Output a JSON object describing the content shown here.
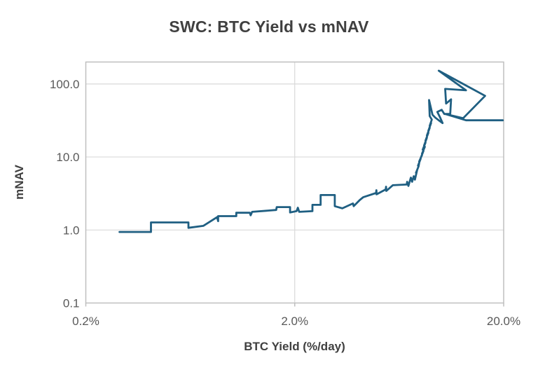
{
  "chart_data": {
    "type": "line",
    "title": "SWC: BTC Yield vs mNAV",
    "xlabel": "BTC Yield (%/day)",
    "ylabel": "mNAV",
    "x_scale": "log",
    "y_scale": "log",
    "xlim_pct_per_day": [
      0.2,
      20
    ],
    "ylim": [
      0.1,
      200
    ],
    "grid": true,
    "legend": "none",
    "x_ticks": [
      {
        "value": 0.2,
        "label": "0.2%"
      },
      {
        "value": 2.0,
        "label": "2.0%"
      },
      {
        "value": 20.0,
        "label": "20.0%"
      }
    ],
    "y_ticks": [
      {
        "value": 100.0,
        "label": "100.0"
      },
      {
        "value": 10.0,
        "label": "10.0"
      },
      {
        "value": 1.0,
        "label": "1.0"
      },
      {
        "value": 0.1,
        "label": "0.1"
      }
    ],
    "colors": {
      "line": "#1f5f82",
      "grid": "#d9d9d9",
      "axis_border": "#bfbfbf",
      "tick_label": "#595959",
      "title": "#404040",
      "axis_label": "#404040"
    },
    "series": [
      {
        "name": "SWC",
        "points": [
          [
            0.29,
            0.94
          ],
          [
            0.41,
            0.94
          ],
          [
            0.41,
            1.27
          ],
          [
            0.62,
            1.27
          ],
          [
            0.62,
            1.07
          ],
          [
            0.73,
            1.14
          ],
          [
            0.85,
            1.5
          ],
          [
            0.86,
            1.32
          ],
          [
            0.86,
            1.55
          ],
          [
            1.05,
            1.55
          ],
          [
            1.05,
            1.72
          ],
          [
            1.22,
            1.72
          ],
          [
            1.23,
            1.59
          ],
          [
            1.25,
            1.77
          ],
          [
            1.63,
            1.88
          ],
          [
            1.64,
            2.06
          ],
          [
            1.9,
            2.06
          ],
          [
            1.9,
            1.74
          ],
          [
            2.04,
            1.81
          ],
          [
            2.07,
            2.02
          ],
          [
            2.1,
            1.77
          ],
          [
            2.43,
            1.81
          ],
          [
            2.43,
            2.21
          ],
          [
            2.66,
            2.21
          ],
          [
            2.66,
            3.01
          ],
          [
            3.11,
            3.01
          ],
          [
            3.11,
            2.12
          ],
          [
            3.38,
            1.98
          ],
          [
            3.8,
            2.31
          ],
          [
            3.83,
            2.12
          ],
          [
            4.1,
            2.58
          ],
          [
            4.26,
            2.82
          ],
          [
            4.9,
            3.21
          ],
          [
            4.92,
            3.51
          ],
          [
            4.93,
            3.08
          ],
          [
            5.45,
            3.59
          ],
          [
            5.47,
            3.92
          ],
          [
            5.49,
            3.43
          ],
          [
            5.89,
            4.1
          ],
          [
            6.87,
            4.19
          ],
          [
            6.9,
            4.57
          ],
          [
            7.0,
            4.01
          ],
          [
            7.19,
            5.22
          ],
          [
            7.29,
            4.57
          ],
          [
            7.42,
            5.46
          ],
          [
            7.52,
            4.9
          ],
          [
            7.71,
            6.65
          ],
          [
            7.61,
            6.07
          ],
          [
            7.83,
            7.43
          ],
          [
            7.88,
            8.29
          ],
          [
            7.78,
            7.6
          ],
          [
            8.01,
            9.46
          ],
          [
            7.88,
            8.69
          ],
          [
            8.13,
            10.6
          ],
          [
            8.01,
            9.68
          ],
          [
            8.26,
            12.1
          ],
          [
            8.13,
            11.1
          ],
          [
            8.39,
            13.8
          ],
          [
            8.19,
            12.6
          ],
          [
            8.45,
            15.7
          ],
          [
            8.32,
            14.4
          ],
          [
            8.58,
            18.3
          ],
          [
            8.45,
            16.8
          ],
          [
            8.72,
            21.4
          ],
          [
            8.58,
            19.7
          ],
          [
            8.85,
            25.0
          ],
          [
            8.72,
            22.9
          ],
          [
            8.99,
            29.1
          ],
          [
            8.85,
            26.7
          ],
          [
            9.06,
            32.5
          ],
          [
            8.85,
            36.3
          ],
          [
            8.79,
            60.2
          ],
          [
            9.13,
            37.9
          ],
          [
            9.41,
            34.7
          ],
          [
            9.78,
            31.8
          ],
          [
            10.2,
            29.1
          ],
          [
            9.93,
            34.7
          ],
          [
            9.63,
            41.4
          ],
          [
            10.1,
            44.3
          ],
          [
            10.4,
            38.8
          ],
          [
            11.1,
            38.8
          ],
          [
            11.2,
            61.6
          ],
          [
            10.6,
            54.0
          ],
          [
            10.5,
            85.7
          ],
          [
            13.2,
            82.0
          ],
          [
            9.78,
            152
          ],
          [
            16.3,
            68.8
          ],
          [
            12.8,
            34.0
          ],
          [
            10.5,
            38.8
          ],
          [
            13.2,
            31.8
          ],
          [
            19.8,
            31.8
          ]
        ]
      }
    ]
  }
}
